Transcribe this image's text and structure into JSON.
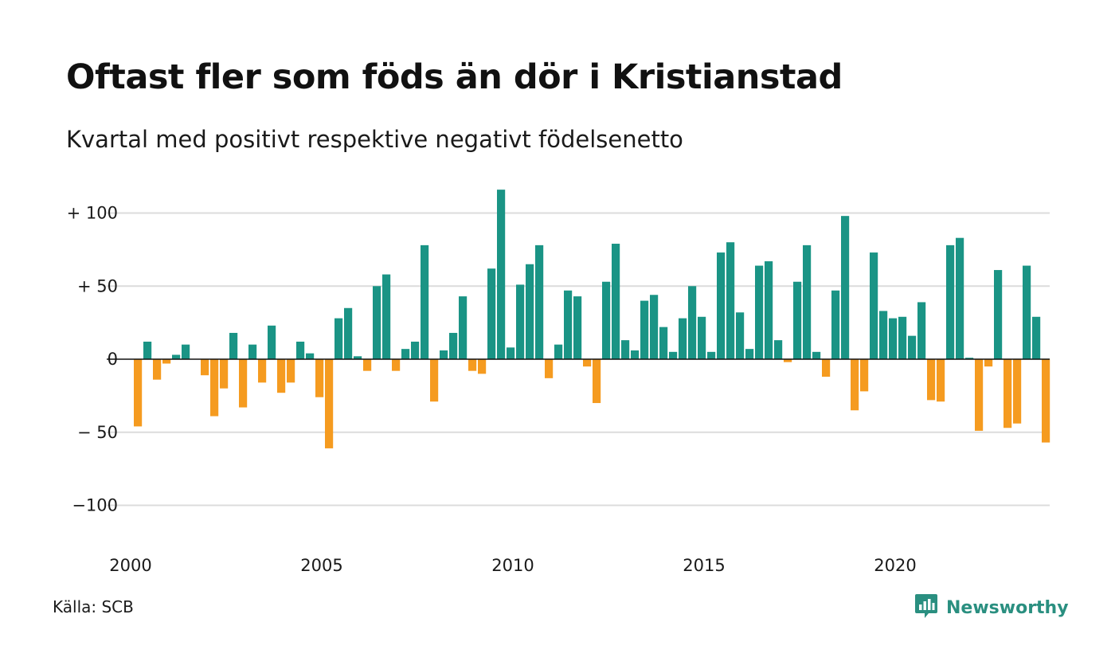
{
  "title": "Oftast fler som föds än dör i Kristianstad",
  "subtitle": "Kvartal med positivt respektive negativt födelsenetto",
  "source": "Källa: SCB",
  "brand": {
    "name": "Newsworthy",
    "icon": "newsworthy-logo-icon",
    "color": "#2a8f80"
  },
  "colors": {
    "positive": "#1a9485",
    "negative": "#f59b20",
    "grid": "#dcdcdc",
    "zero_line": "#111111"
  },
  "chart_data": {
    "type": "bar",
    "title": "Oftast fler som föds än dör i Kristianstad",
    "subtitle": "Kvartal med positivt respektive negativt födelsenetto",
    "xlabel": "",
    "ylabel": "",
    "x_ticks": [
      "2000",
      "2005",
      "2010",
      "2015",
      "2020"
    ],
    "y_ticks": [
      {
        "value": 100,
        "label": "+ 100"
      },
      {
        "value": 50,
        "label": "+  50"
      },
      {
        "value": 0,
        "label": "0"
      },
      {
        "value": -50,
        "label": "− 50"
      },
      {
        "value": -100,
        "label": "−100"
      }
    ],
    "ylim": [
      -110,
      120
    ],
    "xlim": [
      2000.0,
      2024.25
    ],
    "grid": true,
    "legend": "none",
    "categories": [
      "2000 K1",
      "2000 K2",
      "2000 K3",
      "2000 K4",
      "2001 K1",
      "2001 K2",
      "2001 K3",
      "2001 K4",
      "2002 K1",
      "2002 K2",
      "2002 K3",
      "2002 K4",
      "2003 K1",
      "2003 K2",
      "2003 K3",
      "2003 K4",
      "2004 K1",
      "2004 K2",
      "2004 K3",
      "2004 K4",
      "2005 K1",
      "2005 K2",
      "2005 K3",
      "2005 K4",
      "2006 K1",
      "2006 K2",
      "2006 K3",
      "2006 K4",
      "2007 K1",
      "2007 K2",
      "2007 K3",
      "2007 K4",
      "2008 K1",
      "2008 K2",
      "2008 K3",
      "2008 K4",
      "2009 K1",
      "2009 K2",
      "2009 K3",
      "2009 K4",
      "2010 K1",
      "2010 K2",
      "2010 K3",
      "2010 K4",
      "2011 K1",
      "2011 K2",
      "2011 K3",
      "2011 K4",
      "2012 K1",
      "2012 K2",
      "2012 K3",
      "2012 K4",
      "2013 K1",
      "2013 K2",
      "2013 K3",
      "2013 K4",
      "2014 K1",
      "2014 K2",
      "2014 K3",
      "2014 K4",
      "2015 K1",
      "2015 K2",
      "2015 K3",
      "2015 K4",
      "2016 K1",
      "2016 K2",
      "2016 K3",
      "2016 K4",
      "2017 K1",
      "2017 K2",
      "2017 K3",
      "2017 K4",
      "2018 K1",
      "2018 K2",
      "2018 K3",
      "2018 K4",
      "2019 K1",
      "2019 K2",
      "2019 K3",
      "2019 K4",
      "2020 K1",
      "2020 K2",
      "2020 K3",
      "2020 K4",
      "2021 K1",
      "2021 K2",
      "2021 K3",
      "2021 K4",
      "2022 K1",
      "2022 K2",
      "2022 K3",
      "2022 K4",
      "2023 K1",
      "2023 K2",
      "2023 K3",
      "2023 K4",
      "2024 K1"
    ],
    "values": [
      -46,
      12,
      -14,
      -3,
      3,
      10,
      0,
      -11,
      -39,
      -20,
      18,
      -33,
      10,
      -16,
      23,
      -23,
      -16,
      12,
      4,
      -26,
      -61,
      28,
      35,
      2,
      -8,
      50,
      58,
      -8,
      7,
      12,
      78,
      -29,
      6,
      18,
      43,
      -8,
      -10,
      62,
      116,
      8,
      51,
      65,
      78,
      -13,
      10,
      47,
      43,
      -5,
      -30,
      53,
      79,
      13,
      6,
      40,
      44,
      22,
      5,
      28,
      50,
      29,
      5,
      73,
      80,
      32,
      7,
      64,
      67,
      13,
      -2,
      53,
      78,
      5,
      -12,
      47,
      98,
      -35,
      -22,
      73,
      33,
      28,
      29,
      16,
      39,
      -28,
      -29,
      78,
      83,
      1,
      -49,
      -5,
      61,
      -47,
      -44,
      64,
      29,
      -57,
      0
    ]
  }
}
